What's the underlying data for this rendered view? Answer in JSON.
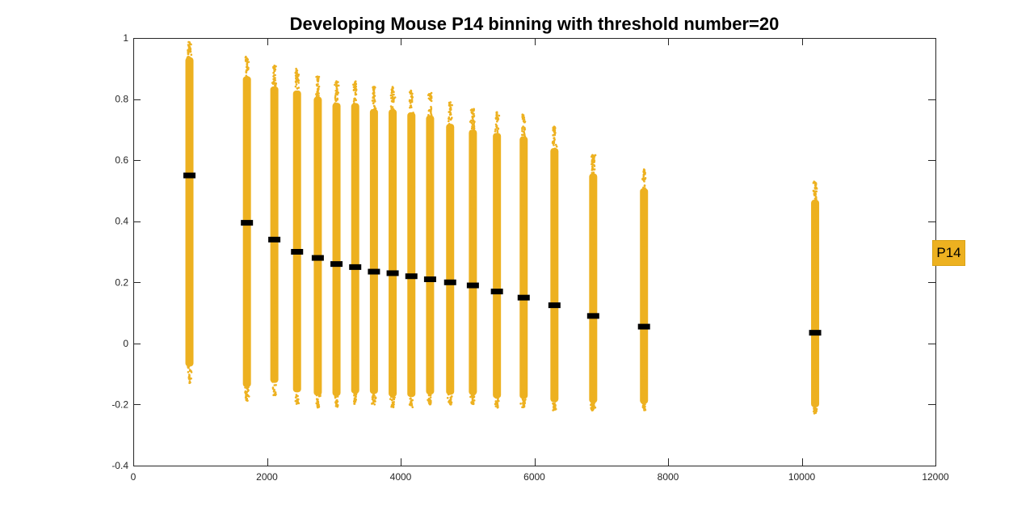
{
  "chart_data": {
    "type": "scatter",
    "title": "Developing Mouse P14 binning with threshold number=20",
    "xlabel": "",
    "ylabel": "",
    "xlim": [
      0,
      12000
    ],
    "ylim": [
      -0.4,
      1
    ],
    "xticks": [
      0,
      2000,
      4000,
      6000,
      8000,
      10000,
      12000
    ],
    "yticks": [
      -0.4,
      -0.2,
      0,
      0.2,
      0.4,
      0.6,
      0.8,
      1
    ],
    "grid": false,
    "legend": {
      "entries": [
        "P14"
      ],
      "placement": "right"
    },
    "colors": {
      "points": "#EDB120",
      "median": "#000000"
    },
    "bins": [
      {
        "x": 840,
        "median": 0.55,
        "ymin": -0.13,
        "ymax": 0.99
      },
      {
        "x": 1700,
        "median": 0.395,
        "ymin": -0.19,
        "ymax": 0.94
      },
      {
        "x": 2110,
        "median": 0.34,
        "ymin": -0.17,
        "ymax": 0.91
      },
      {
        "x": 2450,
        "median": 0.3,
        "ymin": -0.2,
        "ymax": 0.9
      },
      {
        "x": 2760,
        "median": 0.28,
        "ymin": -0.21,
        "ymax": 0.88
      },
      {
        "x": 3040,
        "median": 0.26,
        "ymin": -0.21,
        "ymax": 0.86
      },
      {
        "x": 3320,
        "median": 0.25,
        "ymin": -0.2,
        "ymax": 0.86
      },
      {
        "x": 3600,
        "median": 0.235,
        "ymin": -0.2,
        "ymax": 0.84
      },
      {
        "x": 3880,
        "median": 0.23,
        "ymin": -0.21,
        "ymax": 0.84
      },
      {
        "x": 4160,
        "median": 0.22,
        "ymin": -0.21,
        "ymax": 0.83
      },
      {
        "x": 4440,
        "median": 0.21,
        "ymin": -0.2,
        "ymax": 0.82
      },
      {
        "x": 4740,
        "median": 0.2,
        "ymin": -0.2,
        "ymax": 0.79
      },
      {
        "x": 5080,
        "median": 0.19,
        "ymin": -0.2,
        "ymax": 0.77
      },
      {
        "x": 5440,
        "median": 0.17,
        "ymin": -0.21,
        "ymax": 0.76
      },
      {
        "x": 5840,
        "median": 0.15,
        "ymin": -0.21,
        "ymax": 0.75
      },
      {
        "x": 6300,
        "median": 0.125,
        "ymin": -0.22,
        "ymax": 0.71
      },
      {
        "x": 6880,
        "median": 0.09,
        "ymin": -0.22,
        "ymax": 0.62
      },
      {
        "x": 7640,
        "median": 0.055,
        "ymin": -0.22,
        "ymax": 0.57
      },
      {
        "x": 10200,
        "median": 0.035,
        "ymin": -0.23,
        "ymax": 0.53
      }
    ]
  }
}
